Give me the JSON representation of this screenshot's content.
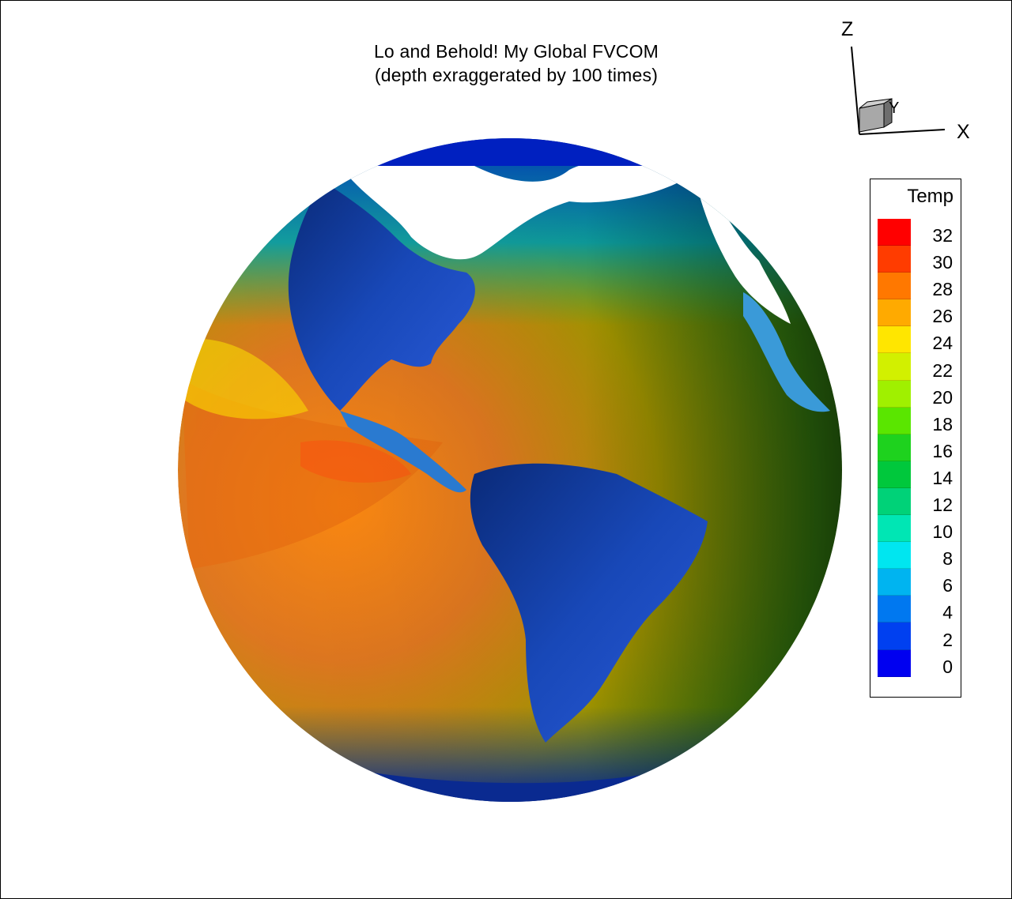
{
  "title": {
    "line1": "Lo and Behold! My Global FVCOM",
    "line2": "(depth exraggerated by 100 times)"
  },
  "axes": {
    "z": "Z",
    "y": "Y",
    "x": "X"
  },
  "legend": {
    "title": "Temp",
    "labels": [
      "32",
      "30",
      "28",
      "26",
      "24",
      "22",
      "20",
      "18",
      "16",
      "14",
      "12",
      "10",
      "8",
      "6",
      "4",
      "2",
      "0"
    ],
    "colors": [
      "#ff0000",
      "#ff3c00",
      "#ff7800",
      "#ffaa00",
      "#ffe600",
      "#d2f000",
      "#a0f000",
      "#5ae600",
      "#1ed21e",
      "#00c83c",
      "#00d278",
      "#00e6b4",
      "#00e6f0",
      "#00b4f0",
      "#0078f0",
      "#0040f0",
      "#0000f0"
    ]
  },
  "colors": {
    "ocean_warm": "#e07020",
    "ocean_mid": "#b4a000",
    "ocean_cool": "#2a8a10",
    "land": "#1c4ccf",
    "ice": "#ffffff"
  },
  "icons": [
    "globe-render",
    "axis-triad-icon",
    "axis-cube-icon"
  ]
}
